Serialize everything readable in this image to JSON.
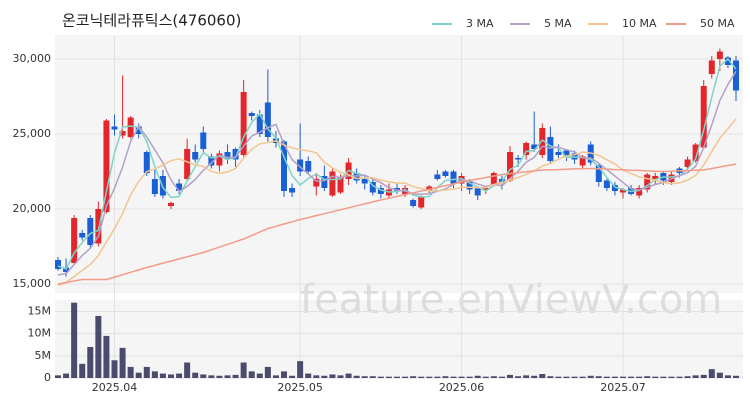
{
  "chart_data": {
    "type": "candlestick",
    "title": "온코닉테라퓨틱스(476060)",
    "watermark": "feature.enViewV.com",
    "up_color": "#e3262b",
    "down_color": "#1b5fd6",
    "grid": true,
    "categories": [
      null,
      null,
      null,
      null,
      null,
      null,
      null,
      "2025.04",
      null,
      null,
      null,
      null,
      null,
      null,
      null,
      null,
      null,
      null,
      null,
      null,
      null,
      null,
      null,
      null,
      null,
      null,
      null,
      null,
      null,
      null,
      "2025.05",
      null,
      null,
      null,
      null,
      null,
      null,
      null,
      null,
      null,
      null,
      null,
      null,
      null,
      null,
      null,
      null,
      null,
      null,
      null,
      "2025.06",
      null,
      null,
      null,
      null,
      null,
      null,
      null,
      null,
      null,
      null,
      null,
      null,
      null,
      null,
      null,
      null,
      null,
      null,
      null,
      "2025.07",
      null,
      null,
      null,
      null,
      null,
      null,
      null,
      null,
      null,
      null,
      null,
      null,
      null,
      null
    ],
    "open": [
      16600,
      16100,
      16400,
      18400,
      19400,
      17700,
      19800,
      25500,
      24900,
      24800,
      25500,
      23800,
      22000,
      22200,
      20200,
      21700,
      22000,
      23800,
      25100,
      23500,
      22900,
      23800,
      24000,
      23600,
      26400,
      26300,
      27100,
      24700,
      24500,
      21400,
      23300,
      23200,
      21500,
      22200,
      20900,
      21100,
      22000,
      22400,
      22000,
      21800,
      21400,
      20900,
      21400,
      21000,
      20600,
      20100,
      21200,
      22300,
      22500,
      22500,
      21700,
      21800,
      21400,
      21300,
      21600,
      22000,
      21900,
      23400,
      23600,
      24300,
      23600,
      24800,
      23800,
      23900,
      23700,
      22900,
      24300,
      22900,
      21900,
      21600,
      21100,
      21400,
      20900,
      21300,
      22000,
      22400,
      21800,
      22700,
      22800,
      23200,
      24100,
      29000,
      30000,
      30100,
      29900
    ],
    "high": [
      16800,
      16700,
      19600,
      18600,
      19600,
      20500,
      26000,
      26300,
      28900,
      26200,
      25700,
      23900,
      22600,
      22600,
      20500,
      22000,
      24700,
      24300,
      25500,
      23700,
      23900,
      24300,
      24100,
      28600,
      26500,
      26600,
      29300,
      25200,
      24600,
      21700,
      25700,
      23500,
      22400,
      22900,
      22700,
      22300,
      23400,
      22700,
      22200,
      22000,
      21600,
      21700,
      21700,
      21600,
      20700,
      20900,
      21600,
      22600,
      22600,
      22600,
      22400,
      22000,
      21500,
      21500,
      22500,
      22200,
      24200,
      23600,
      24500,
      26500,
      25700,
      25500,
      24300,
      24000,
      23900,
      23600,
      24500,
      23000,
      22000,
      21800,
      21400,
      21600,
      21600,
      22400,
      22400,
      22500,
      22500,
      22800,
      23500,
      24400,
      28600,
      30200,
      30700,
      30200,
      30200
    ],
    "low": [
      15900,
      15500,
      16300,
      17900,
      17400,
      17500,
      19700,
      24900,
      24700,
      24700,
      24700,
      22200,
      20800,
      20700,
      20000,
      21000,
      21900,
      23100,
      23800,
      22700,
      22500,
      23000,
      22800,
      23500,
      25900,
      24800,
      24500,
      24100,
      20800,
      20800,
      22200,
      22300,
      20900,
      21200,
      20800,
      21000,
      21600,
      21700,
      21300,
      20900,
      20700,
      20700,
      21000,
      20800,
      20100,
      20000,
      21000,
      21900,
      22100,
      21400,
      21200,
      21000,
      20600,
      21000,
      21500,
      21300,
      21800,
      22800,
      23300,
      23800,
      23400,
      23000,
      23400,
      23200,
      23000,
      22700,
      22900,
      21500,
      21200,
      20900,
      20700,
      20900,
      20700,
      21100,
      21600,
      21600,
      21600,
      22100,
      22600,
      23100,
      24000,
      28700,
      29200,
      29400,
      27200
    ],
    "close": [
      16000,
      15800,
      19400,
      18100,
      17600,
      20000,
      25900,
      25300,
      25200,
      26100,
      25000,
      22400,
      21000,
      20900,
      20400,
      21200,
      24000,
      23300,
      24000,
      22900,
      23700,
      23300,
      23300,
      27800,
      26200,
      25000,
      24800,
      24400,
      21200,
      21100,
      22500,
      22500,
      22000,
      21400,
      22500,
      22100,
      23100,
      21900,
      21700,
      21100,
      21000,
      21300,
      21200,
      21400,
      20200,
      20800,
      21500,
      22000,
      22200,
      21700,
      22200,
      21300,
      20900,
      21400,
      22400,
      21700,
      23800,
      23300,
      24400,
      24000,
      25400,
      23200,
      23600,
      23500,
      23300,
      23500,
      23100,
      21800,
      21400,
      21200,
      21300,
      21000,
      21400,
      22300,
      22200,
      21900,
      22300,
      22400,
      23300,
      24300,
      28200,
      29900,
      30500,
      29600,
      27900
    ],
    "ylim": [
      14400,
      31600
    ],
    "yticks": [
      {
        "value": 15000,
        "label": "15,000"
      },
      {
        "value": 20000,
        "label": "20,000"
      },
      {
        "value": 25000,
        "label": "25,000"
      },
      {
        "value": 30000,
        "label": "30,000"
      }
    ],
    "series": [
      {
        "name": "3 MA",
        "color": "#7fd4c8",
        "values": [
          16200,
          16000,
          17067,
          17767,
          18367,
          18567,
          21167,
          23733,
          25467,
          25533,
          25433,
          24500,
          22800,
          21433,
          20767,
          20833,
          21867,
          22833,
          23767,
          23400,
          23533,
          23300,
          23433,
          24800,
          25767,
          26333,
          25333,
          24733,
          23467,
          22233,
          21600,
          22033,
          22333,
          21967,
          21967,
          22000,
          22567,
          22367,
          22233,
          21567,
          21267,
          21133,
          21167,
          21300,
          20933,
          20800,
          20833,
          21433,
          21900,
          21967,
          22033,
          21733,
          21467,
          21200,
          21567,
          21833,
          22633,
          22933,
          23833,
          23900,
          24600,
          24200,
          24067,
          23433,
          23467,
          23433,
          23300,
          22800,
          22100,
          21467,
          21300,
          21167,
          21233,
          21567,
          21967,
          22133,
          22133,
          22200,
          22667,
          23333,
          25267,
          27467,
          29533,
          30000,
          29333
        ]
      },
      {
        "name": "5 MA",
        "color": "#b3a0c8",
        "values": [
          15600,
          15700,
          16300,
          16900,
          17380,
          18180,
          20200,
          21380,
          22800,
          24500,
          25500,
          24800,
          23940,
          23080,
          21940,
          21180,
          21500,
          21960,
          22580,
          23080,
          23580,
          23440,
          23440,
          24200,
          24860,
          25120,
          25420,
          25640,
          24320,
          23300,
          22800,
          22340,
          21860,
          21900,
          22180,
          22100,
          22220,
          22200,
          22260,
          21980,
          21760,
          21400,
          21260,
          21200,
          21020,
          20980,
          21020,
          21180,
          21340,
          21640,
          21920,
          21880,
          21660,
          21500,
          21640,
          21540,
          22040,
          22520,
          23120,
          23440,
          24180,
          24060,
          24120,
          23940,
          23800,
          23420,
          23400,
          23040,
          22620,
          22200,
          21760,
          21340,
          21260,
          21440,
          21640,
          21760,
          22020,
          22220,
          22420,
          22840,
          24100,
          25620,
          27240,
          28300,
          29180
        ]
      },
      {
        "name": "10 MA",
        "color": "#f3c58f",
        "values": [
          14900,
          15100,
          15500,
          15900,
          16300,
          16900,
          17800,
          18700,
          19700,
          20940,
          21840,
          22500,
          22660,
          22940,
          23220,
          23340,
          23150,
          22950,
          22830,
          22510,
          22380,
          22470,
          22700,
          23390,
          23970,
          24350,
          24430,
          24540,
          24260,
          24080,
          23960,
          23880,
          23750,
          23110,
          22740,
          22450,
          22280,
          22030,
          22080,
          22080,
          21930,
          21810,
          21730,
          21730,
          21500,
          21370,
          21210,
          21220,
          21270,
          21330,
          21450,
          21450,
          21420,
          21420,
          21640,
          21730,
          21960,
          22090,
          22310,
          22540,
          22860,
          23050,
          23320,
          23530,
          23620,
          23800,
          23730,
          23580,
          23280,
          23000,
          22590,
          22370,
          22150,
          22030,
          21920,
          21760,
          21680,
          21740,
          21930,
          22240,
          22930,
          23820,
          24730,
          25360,
          26010
        ]
      },
      {
        "name": "50 MA",
        "color": "#f29c88",
        "values": [
          15000,
          15100,
          15200,
          15300,
          15300,
          15300,
          15300,
          15460,
          15620,
          15780,
          15940,
          16100,
          16240,
          16390,
          16530,
          16670,
          16810,
          16960,
          17100,
          17280,
          17460,
          17640,
          17820,
          18000,
          18230,
          18470,
          18700,
          18850,
          19000,
          19150,
          19300,
          19430,
          19560,
          19690,
          19820,
          19950,
          20080,
          20210,
          20340,
          20470,
          20600,
          20720,
          20840,
          20960,
          21080,
          21200,
          21320,
          21440,
          21560,
          21680,
          21800,
          21900,
          22000,
          22100,
          22200,
          22300,
          22360,
          22420,
          22480,
          22540,
          22600,
          22620,
          22630,
          22650,
          22670,
          22680,
          22700,
          22680,
          22660,
          22630,
          22610,
          22590,
          22570,
          22540,
          22520,
          22500,
          22520,
          22540,
          22560,
          22580,
          22600,
          22700,
          22800,
          22900,
          23000
        ]
      }
    ],
    "volume": {
      "color": "#4b4b6d",
      "values": [
        600000,
        1000000,
        17000000,
        3200000,
        7000000,
        14000000,
        9500000,
        4000000,
        6800000,
        2500000,
        1200000,
        2500000,
        1500000,
        1000000,
        800000,
        1000000,
        3500000,
        1200000,
        800000,
        600000,
        500000,
        600000,
        700000,
        3500000,
        1500000,
        1000000,
        2500000,
        600000,
        1500000,
        500000,
        3800000,
        1000000,
        600000,
        500000,
        800000,
        600000,
        1000000,
        500000,
        400000,
        400000,
        300000,
        300000,
        300000,
        300000,
        400000,
        300000,
        300000,
        300000,
        400000,
        300000,
        300000,
        300000,
        500000,
        300000,
        400000,
        300000,
        700000,
        400000,
        600000,
        500000,
        900000,
        400000,
        300000,
        300000,
        300000,
        300000,
        500000,
        400000,
        300000,
        300000,
        300000,
        300000,
        300000,
        400000,
        300000,
        300000,
        300000,
        300000,
        400000,
        600000,
        700000,
        2000000,
        1200000,
        600000,
        500000
      ],
      "ylim": [
        0,
        17600000
      ],
      "yticks": [
        0,
        {
          "value": 5000000,
          "label": "5M"
        },
        {
          "value": 10000000,
          "label": "10M"
        },
        {
          "value": 15000000,
          "label": "15M"
        }
      ]
    }
  }
}
